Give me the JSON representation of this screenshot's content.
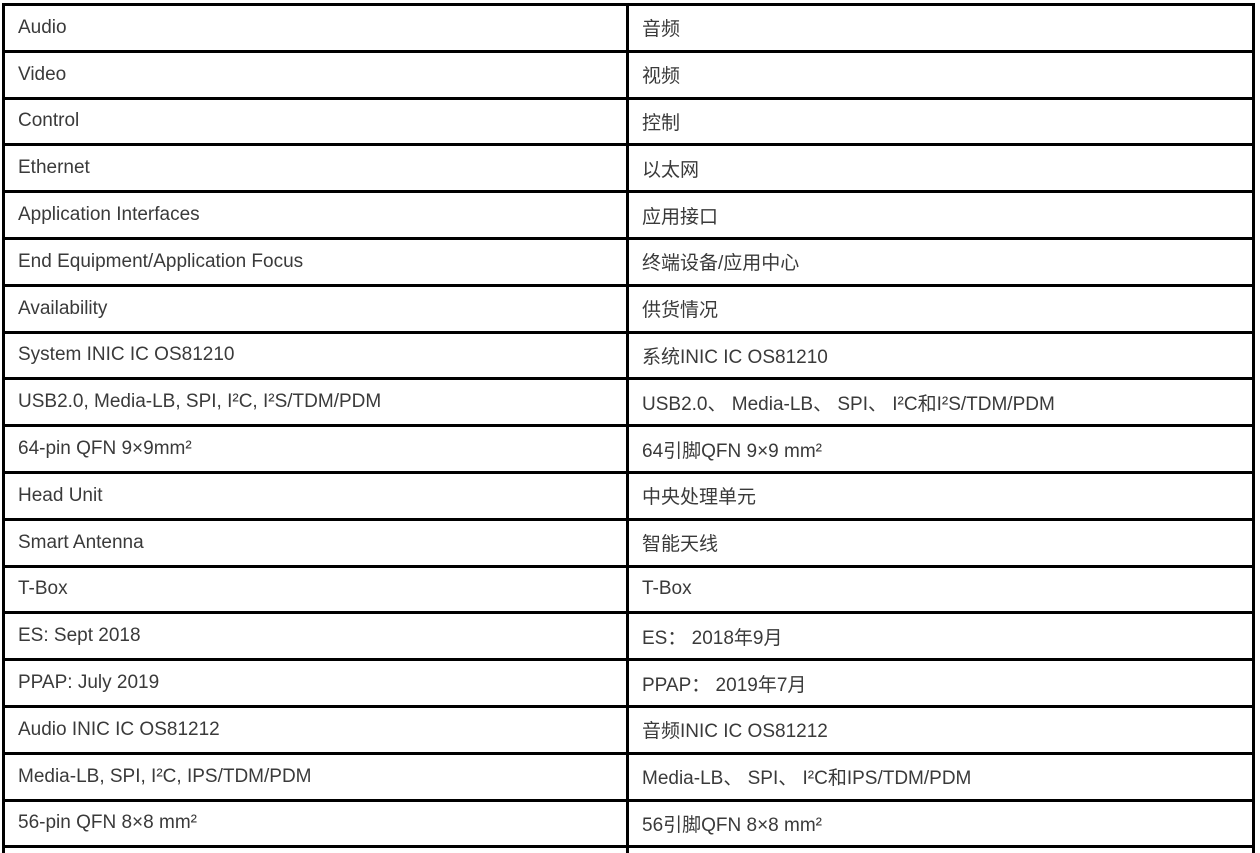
{
  "table": {
    "description": "English to Chinese translation table of MOST automotive INIC IC product specifications",
    "columns": [
      "english",
      "chinese"
    ],
    "colors": {
      "text": "#3a3a3a",
      "border": "#000000",
      "background": "#ffffff"
    },
    "rows": [
      {
        "en": "Audio",
        "zh": "音频"
      },
      {
        "en": "Video",
        "zh": "视频"
      },
      {
        "en": "Control",
        "zh": "控制"
      },
      {
        "en": "Ethernet",
        "zh": "以太网"
      },
      {
        "en": "Application Interfaces",
        "zh": "应用接口"
      },
      {
        "en": "End Equipment/Application Focus",
        "zh": "终端设备/应用中心"
      },
      {
        "en": "Availability",
        "zh": "供货情况"
      },
      {
        "en": "System INIC IC OS81210",
        "zh": "系统INIC IC OS81210"
      },
      {
        "en": "USB2.0, Media-LB, SPI, I²C, I²S/TDM/PDM",
        "zh": "USB2.0、 Media-LB、 SPI、 I²C和I²S/TDM/PDM"
      },
      {
        "en": "64-pin QFN 9×9mm²",
        "zh": "64引脚QFN 9×9 mm²"
      },
      {
        "en": "Head Unit",
        "zh": "中央处理单元"
      },
      {
        "en": "Smart Antenna",
        "zh": "智能天线"
      },
      {
        "en": "T-Box",
        "zh": "T-Box"
      },
      {
        "en": "ES: Sept 2018",
        "zh": "ES： 2018年9月"
      },
      {
        "en": "PPAP: July 2019",
        "zh": "PPAP： 2019年7月"
      },
      {
        "en": "Audio INIC IC OS81212",
        "zh": "音频INIC IC OS81212"
      },
      {
        "en": "Media-LB, SPI, I²C, IPS/TDM/PDM",
        "zh": "Media-LB、 SPI、 I²C和IPS/TDM/PDM"
      },
      {
        "en": "56-pin QFN 8×8 mm²",
        "zh": "56引脚QFN 8×8 mm²"
      }
    ]
  }
}
